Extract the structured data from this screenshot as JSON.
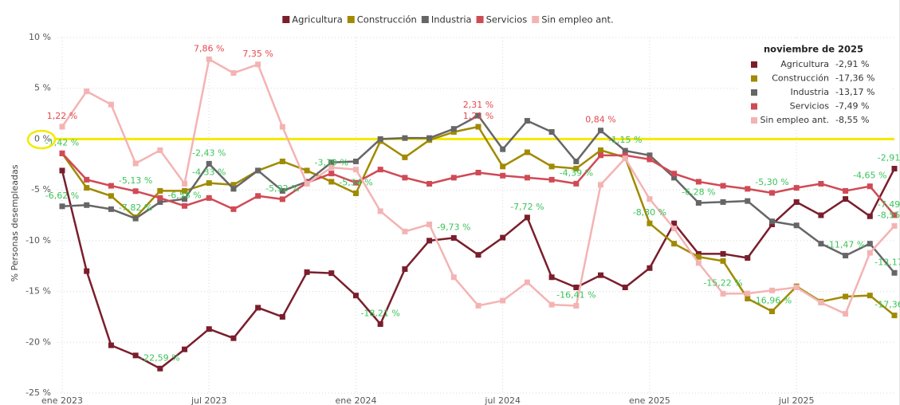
{
  "chart_data": {
    "type": "line",
    "y_axis_label": "% Personas desempleadas",
    "categories": [
      "ene 2023",
      null,
      null,
      null,
      null,
      null,
      "jul 2023",
      null,
      null,
      null,
      null,
      null,
      "ene 2024",
      null,
      null,
      null,
      null,
      null,
      "jul 2024",
      null,
      null,
      null,
      null,
      null,
      "ene 2025",
      null,
      null,
      null,
      null,
      null,
      "jul 2025",
      null,
      null,
      null,
      null
    ],
    "ylim": [
      -25,
      10
    ],
    "yticks": [
      {
        "value": 10,
        "label": "10 %"
      },
      {
        "value": 5,
        "label": "5 %"
      },
      {
        "value": 0,
        "label": "0 %"
      },
      {
        "value": -5,
        "label": "-5 %"
      },
      {
        "value": -10,
        "label": "-10 %"
      },
      {
        "value": -15,
        "label": "-15 %"
      },
      {
        "value": -20,
        "label": "-20 %"
      },
      {
        "value": -25,
        "label": "-25 %"
      }
    ],
    "grid": true,
    "reference_line": {
      "value": 0,
      "color": "#f2ea00"
    },
    "positive_label_color": "#e5484d",
    "negative_label_color": "#3cc35a",
    "legend_position": "top",
    "series": [
      {
        "name": "Agricultura",
        "color": "#7a1e2c",
        "values": [
          -3.1,
          -13.0,
          -20.3,
          -21.3,
          -22.59,
          -20.7,
          -18.7,
          -19.6,
          -16.6,
          -17.5,
          -13.1,
          -13.2,
          -15.4,
          -18.21,
          -12.8,
          -10.0,
          -9.73,
          -11.4,
          -9.7,
          -7.72,
          -13.6,
          -14.6,
          -13.4,
          -14.6,
          -12.7,
          -8.3,
          -11.3,
          -11.3,
          -11.7,
          -8.4,
          -6.2,
          -7.5,
          -5.9,
          -7.6,
          -2.91
        ],
        "value_labels": [
          null,
          null,
          null,
          null,
          "-22,59 %",
          null,
          null,
          null,
          null,
          null,
          null,
          null,
          null,
          "-18,21 %",
          null,
          null,
          "-9,73 %",
          null,
          null,
          "-7,72 %",
          null,
          null,
          null,
          null,
          null,
          null,
          null,
          null,
          null,
          null,
          null,
          null,
          null,
          null,
          "-2,91 %"
        ]
      },
      {
        "name": "Construcción",
        "color": "#a08a00",
        "values": [
          -1.42,
          -4.8,
          -5.6,
          -7.7,
          -5.1,
          -5.1,
          -4.33,
          -4.5,
          -3.1,
          -2.2,
          -3.1,
          -4.2,
          -5.34,
          -0.2,
          -1.8,
          -0.1,
          0.7,
          1.21,
          -2.7,
          -1.3,
          -2.7,
          -2.9,
          -1.1,
          -1.8,
          -8.3,
          -10.3,
          -11.6,
          -12.0,
          -15.7,
          -16.96,
          -14.5,
          -16.0,
          -15.5,
          -15.4,
          -17.36
        ],
        "value_labels": [
          "-1,42 %",
          null,
          null,
          null,
          null,
          null,
          "-4,33 %",
          null,
          null,
          null,
          null,
          null,
          "-5,34 %",
          null,
          null,
          null,
          null,
          "1,21 %",
          null,
          null,
          null,
          null,
          null,
          null,
          "-8,30 %",
          null,
          null,
          null,
          null,
          "-16,96 %",
          null,
          null,
          null,
          null,
          "-17,36 %"
        ]
      },
      {
        "name": "Industria",
        "color": "#666666",
        "values": [
          -6.62,
          -6.5,
          -6.9,
          -7.82,
          -6.2,
          -5.9,
          -2.43,
          -4.9,
          -3.1,
          -5.1,
          -4.2,
          -2.3,
          -2.2,
          0.0,
          0.1,
          0.1,
          1.0,
          2.31,
          -1.0,
          1.8,
          0.7,
          -2.2,
          0.84,
          -1.15,
          -1.6,
          -3.8,
          -6.28,
          -6.2,
          -6.1,
          -8.1,
          -8.5,
          -10.3,
          -11.47,
          -10.3,
          -13.17
        ],
        "value_labels": [
          "-6,62 %",
          null,
          null,
          "-7,82 %",
          null,
          null,
          "-2,43 %",
          null,
          null,
          null,
          null,
          null,
          null,
          null,
          null,
          null,
          null,
          "2,31 %",
          null,
          null,
          null,
          null,
          "0,84 %",
          "-1,15 %",
          null,
          null,
          "-6,28 %",
          null,
          null,
          null,
          null,
          null,
          "-11,47 %",
          null,
          "-13,17 %"
        ]
      },
      {
        "name": "Servicios",
        "color": "#d04a55",
        "values": [
          -1.4,
          -4.0,
          -4.6,
          -5.13,
          -5.8,
          -6.58,
          -5.8,
          -6.9,
          -5.6,
          -5.92,
          -4.3,
          -3.39,
          -4.3,
          -3.0,
          -3.8,
          -4.4,
          -3.8,
          -3.3,
          -3.6,
          -3.8,
          -4.0,
          -4.39,
          -1.6,
          -1.6,
          -2.0,
          -3.4,
          -4.2,
          -4.6,
          -4.9,
          -5.3,
          -4.8,
          -4.4,
          -5.1,
          -4.65,
          -7.49
        ],
        "value_labels": [
          null,
          null,
          null,
          "-5,13 %",
          null,
          "-6,58 %",
          null,
          null,
          null,
          "-5,92 %",
          null,
          "-3,39 %",
          null,
          null,
          null,
          null,
          null,
          null,
          null,
          null,
          null,
          "-4,39 %",
          null,
          null,
          null,
          null,
          null,
          null,
          null,
          "-5,30 %",
          null,
          null,
          null,
          "-4,65 %",
          "-7,49 %"
        ]
      },
      {
        "name": "Sin empleo ant.",
        "color": "#f4b3b3",
        "values": [
          1.22,
          4.7,
          3.4,
          -2.4,
          -1.1,
          -4.4,
          7.86,
          6.5,
          7.35,
          1.2,
          -4.4,
          -2.8,
          -3.0,
          -7.1,
          -9.1,
          -8.4,
          -13.6,
          -16.4,
          -15.9,
          -14.1,
          -16.3,
          -16.41,
          -4.5,
          -1.9,
          -5.9,
          -8.8,
          -12.2,
          -15.22,
          -15.2,
          -14.9,
          -14.6,
          -16.1,
          -17.2,
          -11.2,
          -8.55
        ],
        "value_labels": [
          "1,22 %",
          null,
          null,
          null,
          null,
          null,
          "7,86 %",
          null,
          "7,35 %",
          null,
          null,
          null,
          null,
          null,
          null,
          null,
          null,
          null,
          null,
          null,
          null,
          "-16,41 %",
          null,
          null,
          null,
          null,
          null,
          "-15,22 %",
          null,
          null,
          null,
          null,
          null,
          null,
          "-8,55 %"
        ]
      }
    ],
    "panel": {
      "title": "noviembre de 2025"
    }
  }
}
